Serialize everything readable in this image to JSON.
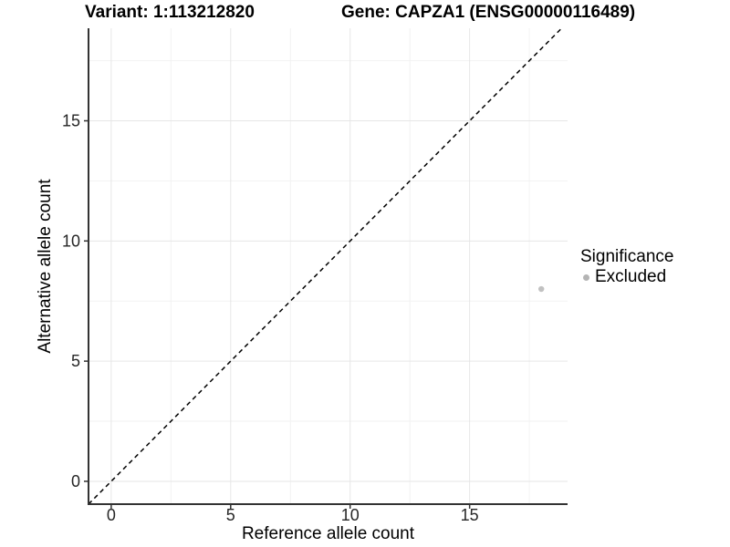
{
  "chart_data": {
    "type": "scatter",
    "title_left": "Variant: 1:113212820",
    "title_right": "Gene: CAPZA1 (ENSG00000116489)",
    "xlabel": "Reference allele count",
    "ylabel": "Alternative allele count",
    "xlim": [
      -0.95,
      19.1
    ],
    "ylim": [
      -0.95,
      18.85
    ],
    "x_ticks": [
      0,
      5,
      10,
      15
    ],
    "y_ticks": [
      0,
      5,
      10,
      15
    ],
    "x_minor_ticks": [
      2.5,
      7.5,
      12.5,
      17.5
    ],
    "y_minor_ticks": [
      2.5,
      7.5,
      12.5,
      17.5
    ],
    "grid": "major+minor",
    "identity_line": {
      "type": "y=x",
      "style": "dashed",
      "color": "#000000"
    },
    "series": [
      {
        "name": "Excluded",
        "color": "#c1c1c1",
        "points": [
          {
            "x": 18,
            "y": 8
          }
        ]
      }
    ],
    "legend": {
      "title": "Significance",
      "position": "right",
      "items": [
        {
          "label": "Excluded",
          "color": "#b4b4b4"
        }
      ]
    },
    "colors": {
      "grid_major": "#e6e6e6",
      "grid_minor": "#f2f2f2",
      "axis_line": "#333333",
      "tick_label": "#262626",
      "title": "#000000"
    }
  }
}
